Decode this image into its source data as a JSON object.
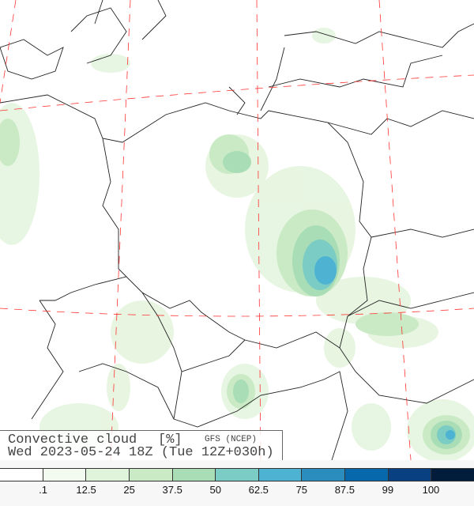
{
  "title": {
    "variable": "Convective cloud",
    "unit": "[%]",
    "model": "GFS (NCEP)",
    "valid_time": "Wed 2023-05-24 18Z (Tue 12Z+030h)"
  },
  "legend": {
    "colors": [
      "#ffffff",
      "#f3faef",
      "#e0f3db",
      "#c9eac4",
      "#a8ddb5",
      "#7bccc4",
      "#4eb3d3",
      "#2b8cbe",
      "#0868ac",
      "#084081",
      "#021d3b"
    ],
    "labels": [
      ".1",
      "12.5",
      "25",
      "37.5",
      "50",
      "62.5",
      "75",
      "87.5",
      "99",
      "100"
    ]
  },
  "map": {
    "region": "Central Europe / Poland",
    "graticule_color": "#ff3333",
    "border_color": "#222222"
  }
}
